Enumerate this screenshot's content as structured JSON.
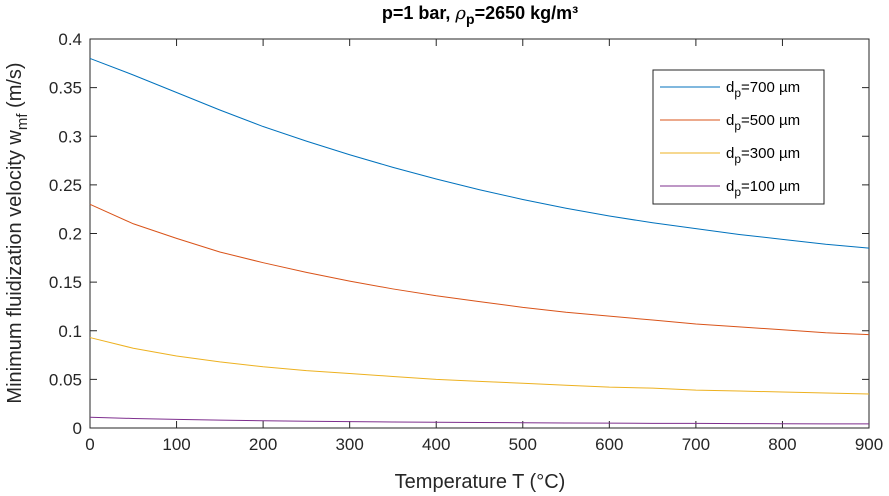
{
  "chart_data": {
    "type": "line",
    "title": {
      "prefix": "p=1 bar, ",
      "rho": "ρ",
      "rho_sub": "p",
      "suffix": "=2650 kg/m³"
    },
    "xlabel": "Temperature T (°C)",
    "ylabel": {
      "main": "Minimum fluidization velocity w",
      "sub": "mf",
      "unit": " (m/s)"
    },
    "xlim": [
      0,
      900
    ],
    "ylim": [
      0,
      0.4
    ],
    "xticks": [
      0,
      100,
      200,
      300,
      400,
      500,
      600,
      700,
      800,
      900
    ],
    "xtick_labels": [
      "0",
      "100",
      "200",
      "300",
      "400",
      "500",
      "600",
      "700",
      "800",
      "900"
    ],
    "yticks": [
      0,
      0.05,
      0.1,
      0.15,
      0.2,
      0.25,
      0.3,
      0.35,
      0.4
    ],
    "ytick_labels": [
      "0",
      "0.05",
      "0.1",
      "0.15",
      "0.2",
      "0.25",
      "0.3",
      "0.35",
      "0.4"
    ],
    "grid": false,
    "legend_position": "top-right",
    "x": [
      0,
      50,
      100,
      150,
      200,
      250,
      300,
      350,
      400,
      450,
      500,
      550,
      600,
      650,
      700,
      750,
      800,
      850,
      900
    ],
    "series": [
      {
        "name_main": "d",
        "name_sub": "p",
        "name_rest": "=700 µm",
        "color": "#0072BD",
        "values": [
          0.38,
          0.363,
          0.345,
          0.327,
          0.31,
          0.295,
          0.281,
          0.268,
          0.256,
          0.245,
          0.235,
          0.226,
          0.218,
          0.211,
          0.205,
          0.199,
          0.194,
          0.189,
          0.185
        ]
      },
      {
        "name_main": "d",
        "name_sub": "p",
        "name_rest": "=500 µm",
        "color": "#D95319",
        "values": [
          0.23,
          0.21,
          0.195,
          0.181,
          0.17,
          0.16,
          0.151,
          0.143,
          0.136,
          0.13,
          0.124,
          0.119,
          0.115,
          0.111,
          0.107,
          0.104,
          0.101,
          0.098,
          0.096
        ]
      },
      {
        "name_main": "d",
        "name_sub": "p",
        "name_rest": "=300 µm",
        "color": "#EDB120",
        "values": [
          0.093,
          0.082,
          0.074,
          0.068,
          0.063,
          0.059,
          0.056,
          0.053,
          0.05,
          0.048,
          0.046,
          0.044,
          0.042,
          0.041,
          0.039,
          0.038,
          0.037,
          0.036,
          0.035
        ]
      },
      {
        "name_main": "d",
        "name_sub": "p",
        "name_rest": "=100 µm",
        "color": "#7E2F8E",
        "values": [
          0.011,
          0.0098,
          0.0089,
          0.0081,
          0.0075,
          0.007,
          0.0066,
          0.0062,
          0.0059,
          0.0056,
          0.0054,
          0.0052,
          0.005,
          0.0048,
          0.0047,
          0.0045,
          0.0044,
          0.0043,
          0.0042
        ]
      }
    ]
  }
}
